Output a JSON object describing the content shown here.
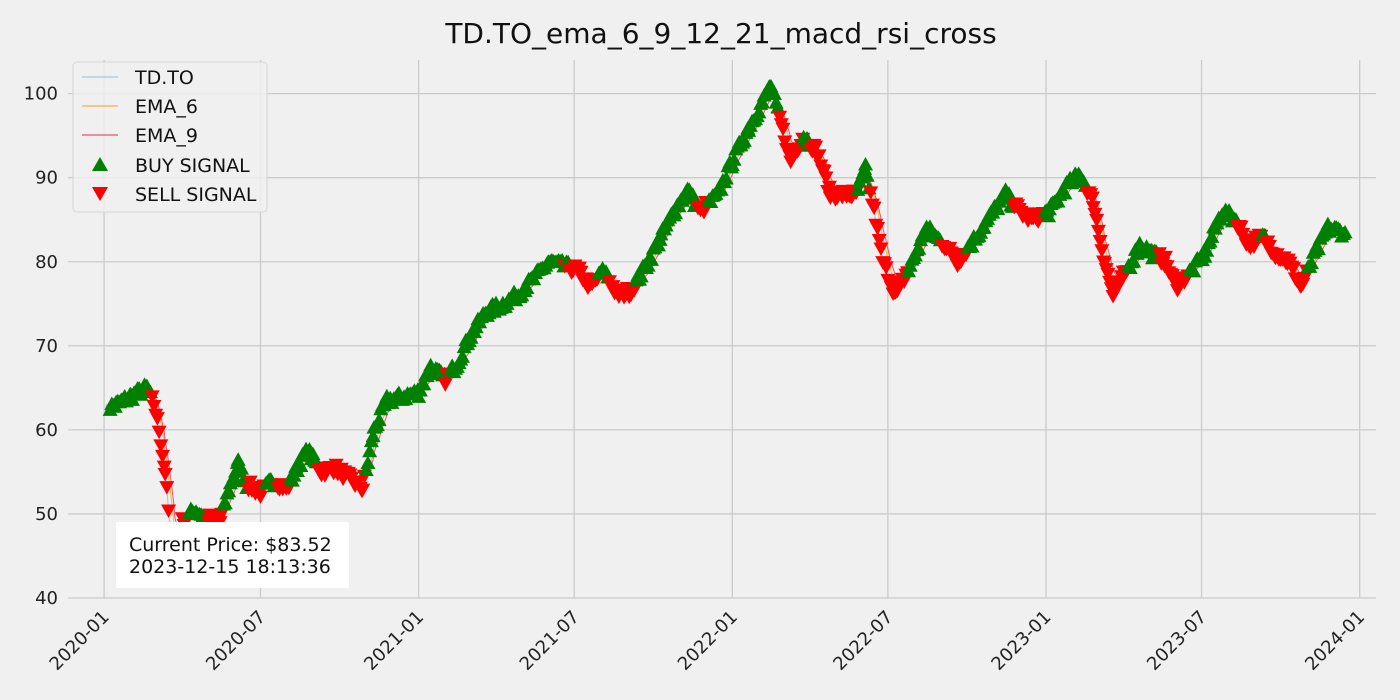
{
  "chart_data": {
    "type": "line",
    "title": "TD.TO_ema_6_9_12_21_macd_rsi_cross",
    "xlabel": "",
    "ylabel": "",
    "xlim": [
      "2019-11-20",
      "2024-01-20"
    ],
    "ylim": [
      40,
      104
    ],
    "x_ticks": [
      "2020-01",
      "2020-07",
      "2021-01",
      "2021-07",
      "2022-01",
      "2022-07",
      "2023-01",
      "2023-07",
      "2024-01"
    ],
    "y_ticks": [
      40,
      50,
      60,
      70,
      80,
      90,
      100
    ],
    "grid": true,
    "legend_position": "top-left",
    "colors": {
      "background": "#f0f0f0",
      "grid": "#cbcbcb",
      "price": "#9ecae1",
      "ema6": "#f5b041",
      "ema9": "#e8536b",
      "buy": "#008000",
      "sell": "#ff0000"
    },
    "price_anchors": [
      [
        "2020-01-02",
        62.5
      ],
      [
        "2020-01-15",
        63.0
      ],
      [
        "2020-02-01",
        64.0
      ],
      [
        "2020-02-20",
        65.0
      ],
      [
        "2020-02-28",
        63.0
      ],
      [
        "2020-03-05",
        60.0
      ],
      [
        "2020-03-12",
        55.0
      ],
      [
        "2020-03-18",
        48.0
      ],
      [
        "2020-03-23",
        44.0
      ],
      [
        "2020-04-01",
        49.0
      ],
      [
        "2020-04-15",
        50.5
      ],
      [
        "2020-05-01",
        49.5
      ],
      [
        "2020-05-15",
        49.0
      ],
      [
        "2020-05-25",
        53.0
      ],
      [
        "2020-06-05",
        56.0
      ],
      [
        "2020-06-15",
        53.5
      ],
      [
        "2020-07-01",
        52.5
      ],
      [
        "2020-07-15",
        54.0
      ],
      [
        "2020-08-01",
        53.0
      ],
      [
        "2020-08-15",
        56.0
      ],
      [
        "2020-08-25",
        57.5
      ],
      [
        "2020-09-10",
        55.0
      ],
      [
        "2020-09-25",
        55.5
      ],
      [
        "2020-10-15",
        54.0
      ],
      [
        "2020-10-28",
        53.0
      ],
      [
        "2020-11-10",
        60.0
      ],
      [
        "2020-11-25",
        63.5
      ],
      [
        "2020-12-15",
        64.0
      ],
      [
        "2021-01-01",
        64.5
      ],
      [
        "2021-01-15",
        67.5
      ],
      [
        "2021-02-01",
        66.0
      ],
      [
        "2021-02-15",
        68.0
      ],
      [
        "2021-03-01",
        71.0
      ],
      [
        "2021-03-20",
        74.0
      ],
      [
        "2021-04-10",
        75.0
      ],
      [
        "2021-04-25",
        76.0
      ],
      [
        "2021-05-15",
        78.0
      ],
      [
        "2021-06-01",
        80.0
      ],
      [
        "2021-06-20",
        79.5
      ],
      [
        "2021-07-05",
        79.0
      ],
      [
        "2021-07-20",
        77.0
      ],
      [
        "2021-08-05",
        79.0
      ],
      [
        "2021-08-20",
        76.0
      ],
      [
        "2021-09-05",
        76.5
      ],
      [
        "2021-09-25",
        80.0
      ],
      [
        "2021-10-10",
        83.0
      ],
      [
        "2021-10-25",
        86.0
      ],
      [
        "2021-11-10",
        88.5
      ],
      [
        "2021-11-25",
        86.0
      ],
      [
        "2021-12-15",
        88.0
      ],
      [
        "2022-01-01",
        92.0
      ],
      [
        "2022-01-20",
        96.0
      ],
      [
        "2022-02-05",
        99.0
      ],
      [
        "2022-02-15",
        101.0
      ],
      [
        "2022-02-25",
        97.0
      ],
      [
        "2022-03-10",
        92.0
      ],
      [
        "2022-03-25",
        95.0
      ],
      [
        "2022-04-10",
        93.0
      ],
      [
        "2022-04-25",
        88.0
      ],
      [
        "2022-05-10",
        88.0
      ],
      [
        "2022-05-25",
        88.0
      ],
      [
        "2022-06-05",
        91.0
      ],
      [
        "2022-06-15",
        86.0
      ],
      [
        "2022-06-25",
        80.0
      ],
      [
        "2022-07-10",
        76.0
      ],
      [
        "2022-07-25",
        79.0
      ],
      [
        "2022-08-15",
        84.0
      ],
      [
        "2022-09-05",
        82.0
      ],
      [
        "2022-09-20",
        80.0
      ],
      [
        "2022-10-05",
        82.0
      ],
      [
        "2022-10-25",
        85.0
      ],
      [
        "2022-11-15",
        88.0
      ],
      [
        "2022-12-01",
        86.0
      ],
      [
        "2022-12-15",
        85.0
      ],
      [
        "2023-01-05",
        86.0
      ],
      [
        "2023-01-25",
        89.0
      ],
      [
        "2023-02-10",
        90.5
      ],
      [
        "2023-02-25",
        87.0
      ],
      [
        "2023-03-10",
        80.0
      ],
      [
        "2023-03-20",
        76.0
      ],
      [
        "2023-04-05",
        79.0
      ],
      [
        "2023-04-20",
        82.0
      ],
      [
        "2023-05-05",
        81.0
      ],
      [
        "2023-05-20",
        80.0
      ],
      [
        "2023-06-01",
        77.0
      ],
      [
        "2023-06-20",
        79.0
      ],
      [
        "2023-07-05",
        81.0
      ],
      [
        "2023-07-25",
        86.0
      ],
      [
        "2023-08-10",
        85.0
      ],
      [
        "2023-08-25",
        82.0
      ],
      [
        "2023-09-10",
        83.0
      ],
      [
        "2023-09-25",
        81.0
      ],
      [
        "2023-10-10",
        80.0
      ],
      [
        "2023-10-25",
        77.0
      ],
      [
        "2023-11-10",
        81.0
      ],
      [
        "2023-11-25",
        84.0
      ],
      [
        "2023-12-15",
        83.5
      ]
    ],
    "series": [
      {
        "name": "TD.TO",
        "kind": "line",
        "color": "#9ecae1"
      },
      {
        "name": "EMA_6",
        "kind": "line",
        "color": "#f5b041"
      },
      {
        "name": "EMA_9",
        "kind": "line",
        "color": "#e8536b"
      },
      {
        "name": "BUY SIGNAL",
        "kind": "marker",
        "marker": "triangle-up",
        "color": "#008000"
      },
      {
        "name": "SELL SIGNAL",
        "kind": "marker",
        "marker": "triangle-down",
        "color": "#ff0000"
      }
    ],
    "annotation": {
      "line1": "Current Price: $83.52",
      "line2": "2023-12-15 18:13:36"
    }
  }
}
